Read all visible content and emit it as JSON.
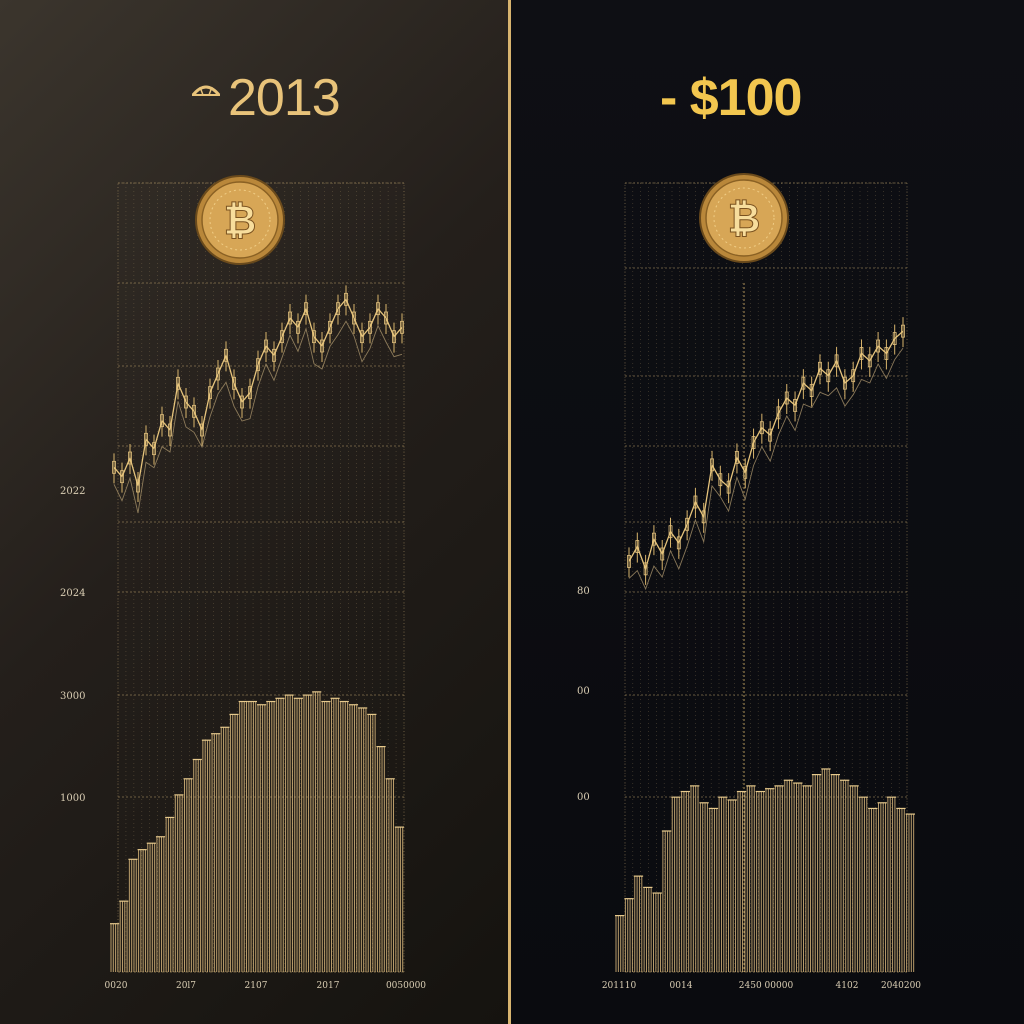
{
  "left": {
    "title": "2013",
    "y_tick_labels": [
      "2022",
      "2024",
      "3000",
      "1000"
    ],
    "x_tick_labels": [
      "0020",
      "20l7",
      "2107",
      "2017",
      "0050000"
    ]
  },
  "right": {
    "title": "- $100",
    "y_tick_labels": [
      "80",
      "00",
      "00"
    ],
    "x_tick_labels": [
      "201110",
      "0014",
      "2450 00000",
      "4102",
      "2040200"
    ]
  },
  "icons": [
    "arch-logo-icon",
    "bitcoin-coin-icon"
  ],
  "colors": {
    "gold": "#d9b56c",
    "title_gold": "#f2c64f",
    "divider": "#d8b46f"
  },
  "chart_data": [
    {
      "type": "line",
      "title": "2013",
      "xlabel": "",
      "ylabel": "",
      "y_ticks": [
        "2022",
        "2024",
        "3000",
        "1000"
      ],
      "x_ticks": [
        "0020",
        "20l7",
        "2107",
        "2017",
        "0050000"
      ],
      "grid": true,
      "series": [
        {
          "values": [
            62,
            60,
            64,
            58,
            68,
            66,
            72,
            70,
            80,
            76,
            74,
            70,
            78,
            82,
            86,
            80,
            76,
            78,
            84,
            88,
            86,
            90,
            94,
            92,
            96,
            90,
            88,
            92,
            96,
            98,
            94,
            90,
            92,
            96,
            94,
            90,
            92
          ]
        }
      ],
      "volume": {
        "values": [
          15,
          22,
          35,
          38,
          40,
          42,
          48,
          55,
          60,
          66,
          72,
          74,
          76,
          80,
          84,
          84,
          83,
          84,
          85,
          86,
          85,
          86,
          87,
          84,
          85,
          84,
          83,
          82,
          80,
          70,
          60,
          45
        ]
      }
    },
    {
      "type": "line",
      "title": "- $100",
      "xlabel": "",
      "ylabel": "",
      "y_ticks": [
        "80",
        "00",
        "00"
      ],
      "x_ticks": [
        "201110",
        "0014",
        "2450 00000",
        "4102",
        "2040200"
      ],
      "grid": true,
      "series": [
        {
          "values": [
            30,
            34,
            28,
            36,
            32,
            38,
            35,
            40,
            46,
            42,
            56,
            52,
            50,
            58,
            54,
            62,
            66,
            64,
            70,
            74,
            72,
            78,
            76,
            82,
            80,
            84,
            78,
            80,
            86,
            84,
            88,
            86,
            90,
            92
          ]
        }
      ],
      "volume": {
        "values": [
          20,
          26,
          34,
          30,
          28,
          50,
          62,
          64,
          66,
          60,
          58,
          62,
          61,
          64,
          66,
          64,
          65,
          66,
          68,
          67,
          66,
          70,
          72,
          70,
          68,
          66,
          62,
          58,
          60,
          62,
          58,
          56
        ]
      }
    }
  ]
}
